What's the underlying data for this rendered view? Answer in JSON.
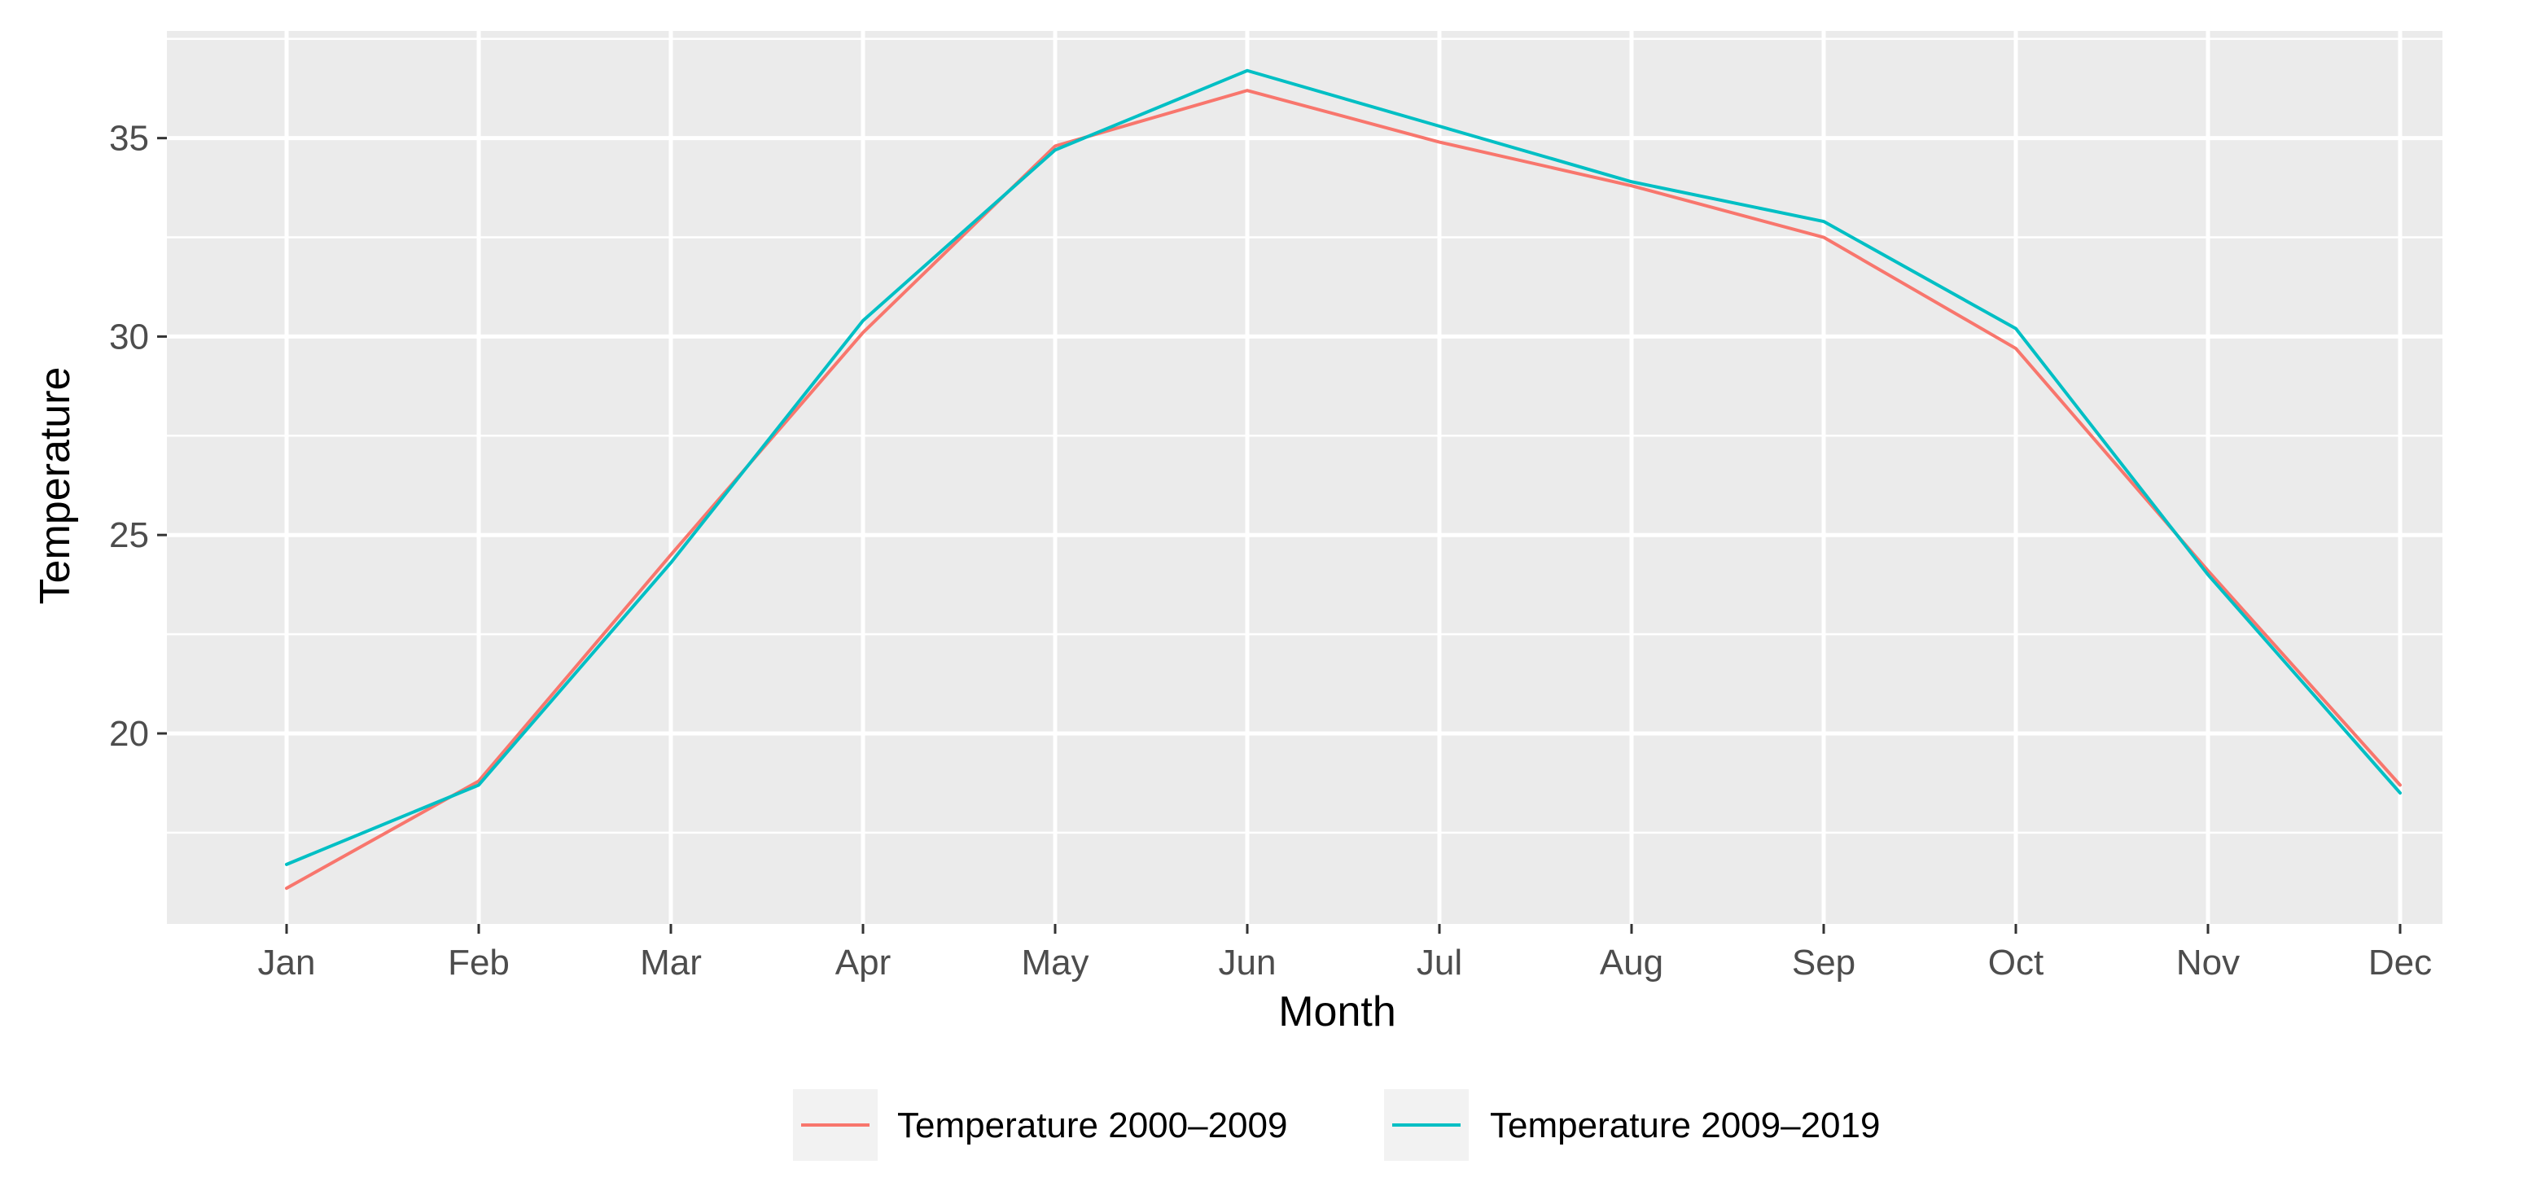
{
  "chart_data": {
    "type": "line",
    "title": "",
    "xlabel": "Month",
    "ylabel": "Temperature",
    "categories": [
      "Jan",
      "Feb",
      "Mar",
      "Apr",
      "May",
      "Jun",
      "Jul",
      "Aug",
      "Sep",
      "Oct",
      "Nov",
      "Dec"
    ],
    "ylim": [
      15.2,
      37.7
    ],
    "yticks": [
      20,
      25,
      30,
      35
    ],
    "ytick_labels": [
      "20",
      "25",
      "30",
      "35"
    ],
    "grid": true,
    "legend_position": "bottom",
    "series": [
      {
        "name": "Temperature 2000–2009",
        "color": "#f8766d",
        "values": [
          16.1,
          18.8,
          24.5,
          30.1,
          34.8,
          36.2,
          34.9,
          33.8,
          32.5,
          29.7,
          24.1,
          18.7
        ]
      },
      {
        "name": "Temperature 2009–2019",
        "color": "#00bfc4",
        "values": [
          16.7,
          18.7,
          24.3,
          30.4,
          34.7,
          36.7,
          35.3,
          33.9,
          32.9,
          30.2,
          24.0,
          18.5
        ]
      }
    ]
  },
  "colors": {
    "panel_background": "#ebebeb",
    "legend_key_background": "#f2f2f2"
  }
}
